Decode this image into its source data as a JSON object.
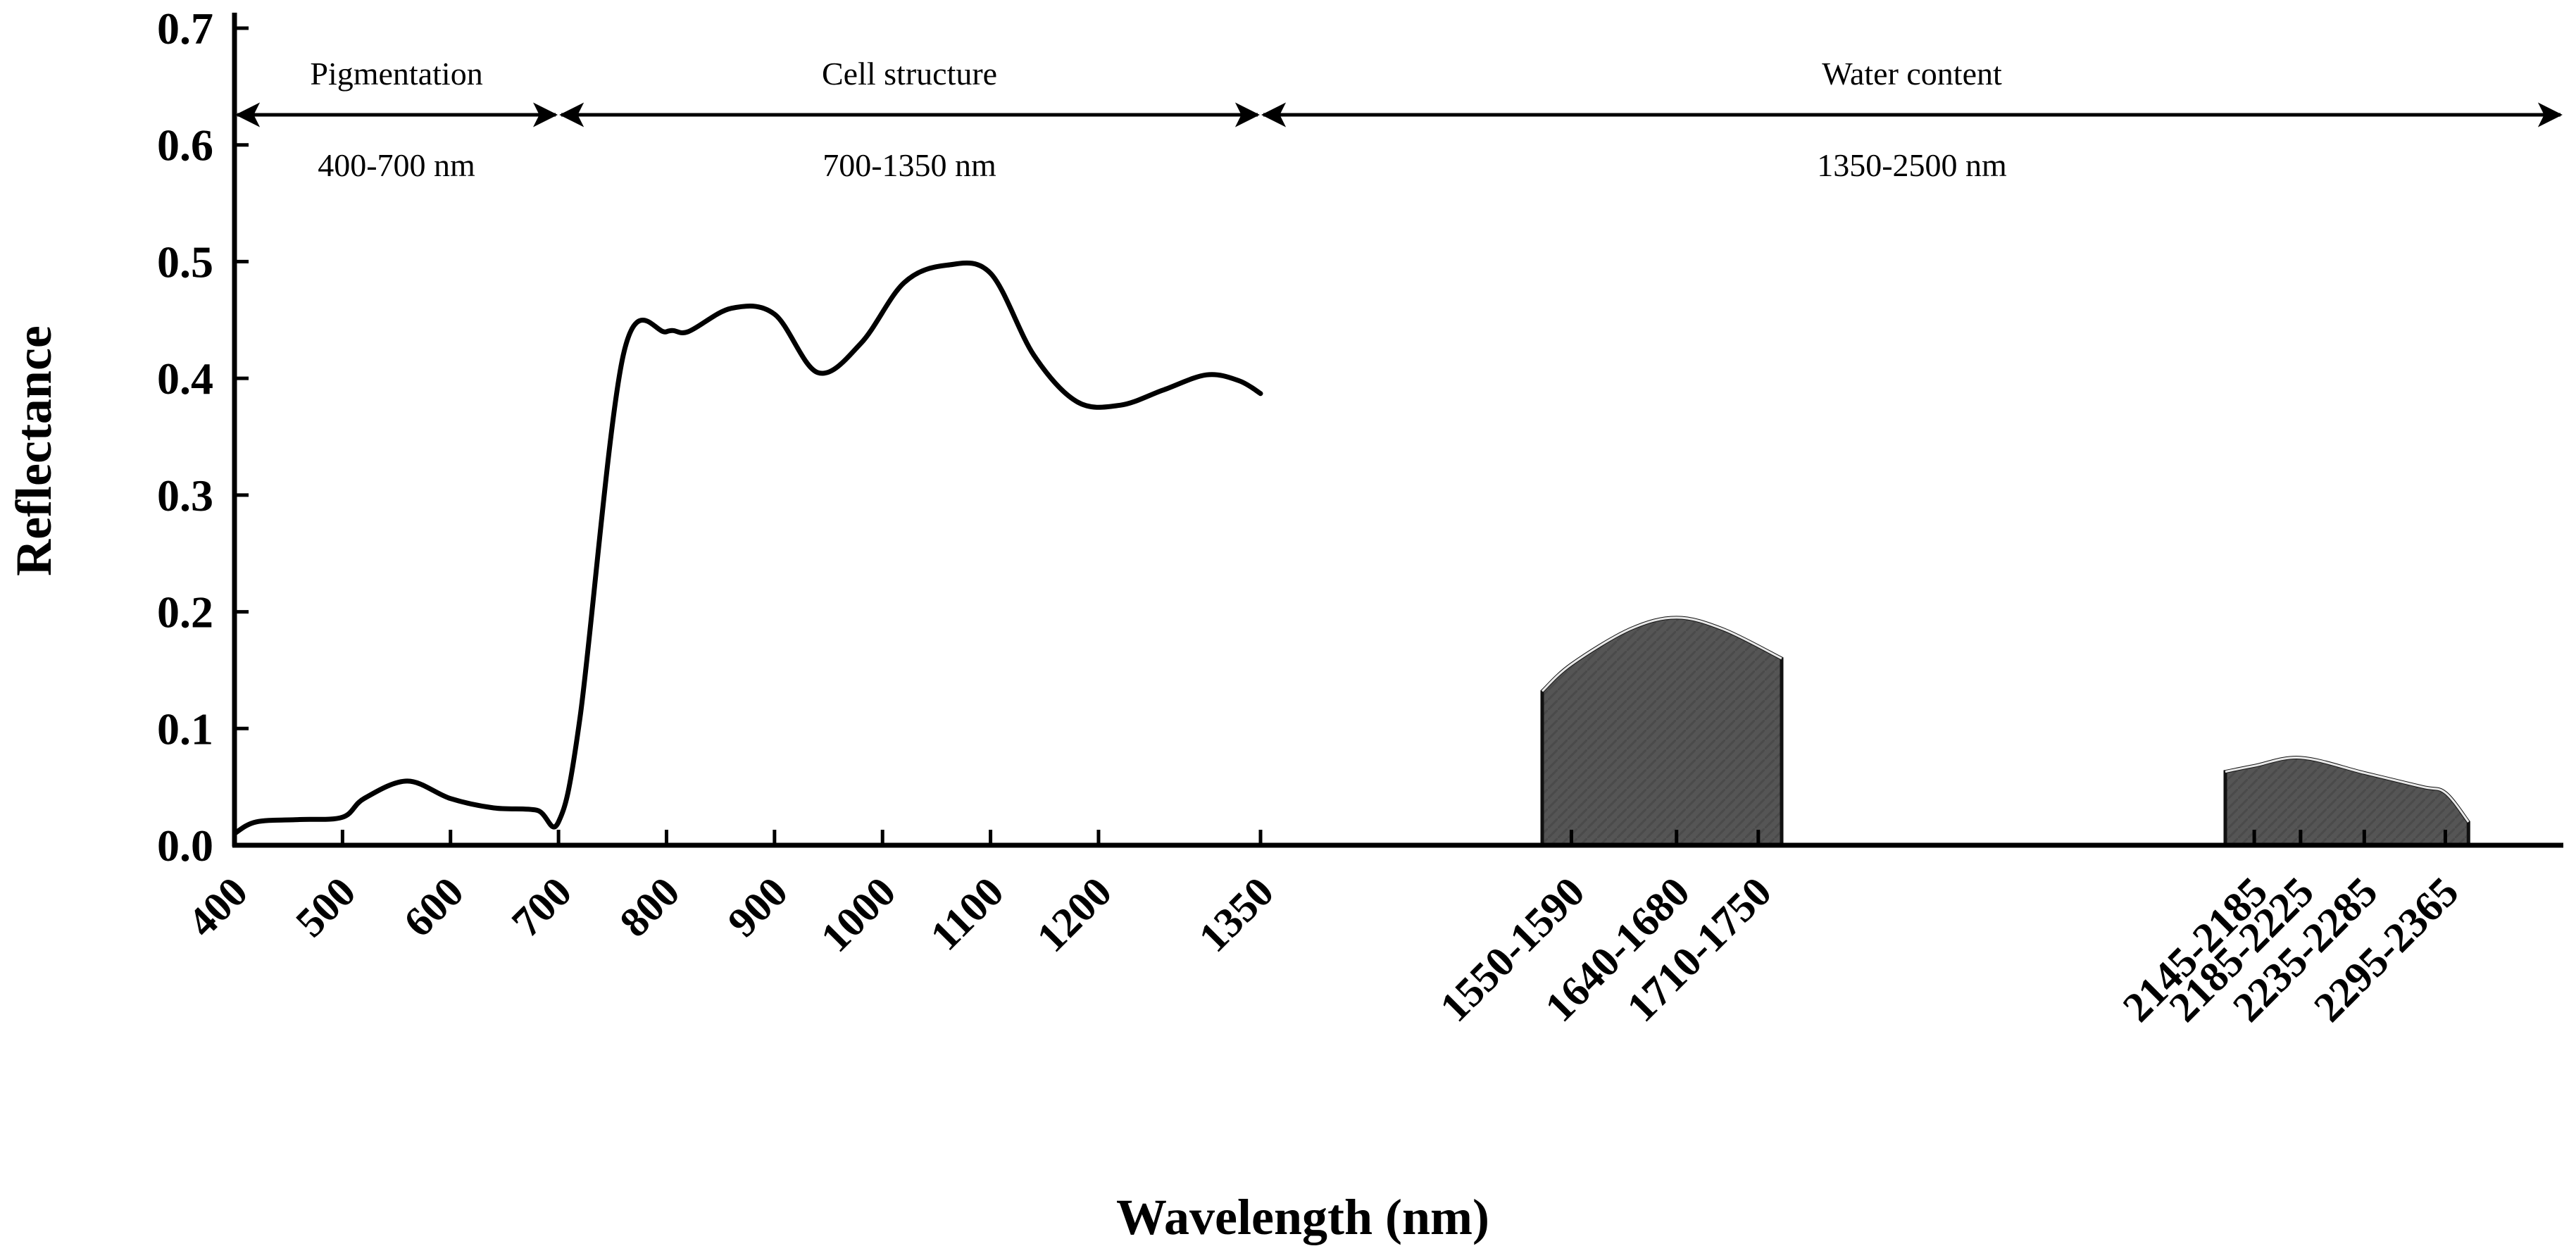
{
  "chart_data": {
    "type": "line",
    "title": "",
    "xlabel": "Wavelength (nm)",
    "ylabel": "Reflectance",
    "ylim": [
      0,
      0.7
    ],
    "y_ticks": [
      "0.0",
      "0.1",
      "0.2",
      "0.3",
      "0.4",
      "0.5",
      "0.6",
      "0.7"
    ],
    "x_ticks": [
      {
        "label": "400",
        "x": 400
      },
      {
        "label": "500",
        "x": 500
      },
      {
        "label": "600",
        "x": 600
      },
      {
        "label": "700",
        "x": 700
      },
      {
        "label": "800",
        "x": 800
      },
      {
        "label": "900",
        "x": 900
      },
      {
        "label": "1000",
        "x": 1000
      },
      {
        "label": "1100",
        "x": 1100
      },
      {
        "label": "1200",
        "x": 1200
      },
      {
        "label": "1350",
        "x": 1350
      },
      {
        "label": "1550-1590",
        "x": 1570
      },
      {
        "label": "1640-1680",
        "x": 1660
      },
      {
        "label": "1710-1750",
        "x": 1730
      },
      {
        "label": "2145-2185",
        "x": 2165
      },
      {
        "label": "2185-2225",
        "x": 2205
      },
      {
        "label": "2235-2285",
        "x": 2260
      },
      {
        "label": "2295-2365",
        "x": 2330
      }
    ],
    "spectrum": {
      "x": [
        400,
        420,
        460,
        500,
        520,
        560,
        600,
        640,
        680,
        700,
        720,
        760,
        800,
        820,
        860,
        900,
        940,
        980,
        1020,
        1060,
        1100,
        1140,
        1180,
        1220,
        1260,
        1300,
        1330,
        1350
      ],
      "y": [
        0.01,
        0.02,
        0.022,
        0.024,
        0.04,
        0.055,
        0.04,
        0.032,
        0.03,
        0.02,
        0.11,
        0.42,
        0.44,
        0.44,
        0.46,
        0.455,
        0.405,
        0.43,
        0.482,
        0.497,
        0.49,
        0.42,
        0.38,
        0.377,
        0.39,
        0.403,
        0.398,
        0.387
      ]
    },
    "water_bands": [
      {
        "range": "1550-1750",
        "x": [
          1545,
          1570,
          1620,
          1660,
          1700,
          1750
        ],
        "y": [
          0.132,
          0.155,
          0.185,
          0.195,
          0.185,
          0.16
        ]
      },
      {
        "range": "2145-2365",
        "x": [
          2140,
          2165,
          2205,
          2260,
          2310,
          2330,
          2350
        ],
        "y": [
          0.063,
          0.068,
          0.075,
          0.062,
          0.05,
          0.045,
          0.02
        ]
      }
    ],
    "regions": [
      {
        "name": "Pigmentation",
        "range": "400-700 nm",
        "start": 400,
        "end": 700
      },
      {
        "name": "Cell structure",
        "range": "700-1350 nm",
        "start": 700,
        "end": 1350
      },
      {
        "name": "Water content",
        "range": "1350-2500 nm",
        "start": 1350,
        "end": 2500
      }
    ],
    "legend": "none",
    "grid": false
  }
}
